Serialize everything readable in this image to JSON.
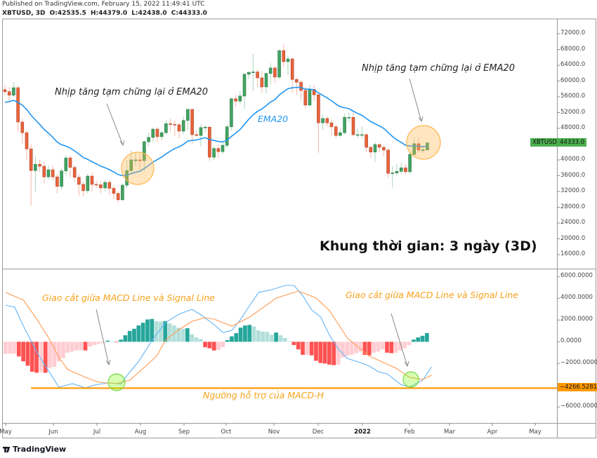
{
  "header": {
    "published": "Published on TradingView.com, February 15, 2022 11:49:41 UTC",
    "symbol": "XBTUSD, 3D",
    "ohlc": [
      "O:42535.5",
      "H:44379.0",
      "L:42438.0",
      "C:44333.0"
    ]
  },
  "footer": {
    "logo": "TradingView"
  },
  "colors": {
    "up": "#43a362",
    "down": "#e8643c",
    "ema": "#2196f3",
    "macd": "#64b5f6",
    "signal": "#ff9a52",
    "support": "#ff9800",
    "hist_up_strong": "#26a69a",
    "hist_up_weak": "#b2dfdb",
    "hist_down_strong": "#ff5252",
    "hist_down_weak": "#ffcdd2"
  },
  "annotations": {
    "ema_note_left": "Nhịp tăng tạm chững lại ở EMA20",
    "ema_note_right": "Nhịp tăng tạm chững lại ở EMA20",
    "ema_label": "EMA20",
    "timeframe": "Khung thời gian:  3 ngày (3D)",
    "cross_note_left": "Giao cắt giữa MACD Line và Signal Line",
    "cross_note_right": "Giao cắt giữa MACD Line và Signal Line",
    "support_note": "Ngưỡng hỗ trợ của MACD-H"
  },
  "chart_data": [
    {
      "type": "candlestick",
      "symbol": "XBTUSD",
      "last_price_label": "XBTUSD",
      "last_price": "44333.0",
      "ylim": [
        12000,
        74000
      ],
      "y_ticks": [
        "72000.0",
        "68000.0",
        "64000.0",
        "60000.0",
        "56000.0",
        "52000.0",
        "48000.0",
        "44000.0",
        "40000.0",
        "36000.0",
        "32000.0",
        "28000.0",
        "24000.0",
        "20000.0",
        "16000.0"
      ],
      "x_ticks": [
        "May",
        "Jun",
        "Jul",
        "Aug",
        "Sep",
        "Oct",
        "Nov",
        "Dec",
        "2022",
        "Feb",
        "Mar",
        "Apr",
        "May"
      ],
      "overlay": "EMA20",
      "candles_ohlc": [
        [
          57800,
          59000,
          56500,
          57300
        ],
        [
          57300,
          58500,
          54500,
          56400
        ],
        [
          56400,
          59700,
          56000,
          58300
        ],
        [
          58300,
          58800,
          47000,
          49600
        ],
        [
          49600,
          50500,
          44000,
          46900
        ],
        [
          46900,
          47500,
          40000,
          42800
        ],
        [
          42800,
          44000,
          28400,
          37300
        ],
        [
          37300,
          41000,
          32000,
          38900
        ],
        [
          38900,
          40000,
          37000,
          38400
        ],
        [
          38400,
          39500,
          34000,
          35700
        ],
        [
          35700,
          38500,
          35000,
          37500
        ],
        [
          37500,
          38700,
          34800,
          35700
        ],
        [
          35700,
          36500,
          31500,
          33300
        ],
        [
          33300,
          37800,
          32500,
          37200
        ],
        [
          37200,
          41300,
          36000,
          40500
        ],
        [
          40500,
          41000,
          35500,
          38100
        ],
        [
          38100,
          38600,
          34500,
          35600
        ],
        [
          35600,
          36500,
          31000,
          33800
        ],
        [
          33800,
          34500,
          30800,
          32200
        ],
        [
          32200,
          36500,
          31500,
          35900
        ],
        [
          35900,
          36800,
          32000,
          33800
        ],
        [
          33800,
          34700,
          32800,
          33700
        ],
        [
          33700,
          34500,
          31500,
          32900
        ],
        [
          32900,
          35000,
          32000,
          34300
        ],
        [
          34300,
          34800,
          31000,
          32800
        ],
        [
          32800,
          33500,
          30000,
          31500
        ],
        [
          31500,
          32000,
          29300,
          29900
        ],
        [
          29900,
          34000,
          29500,
          33600
        ],
        [
          33600,
          40000,
          33000,
          37300
        ],
        [
          37300,
          42500,
          36500,
          40000
        ],
        [
          40000,
          42000,
          38500,
          40000
        ],
        [
          40000,
          41500,
          37500,
          39800
        ],
        [
          39800,
          45000,
          37000,
          44600
        ],
        [
          44600,
          47000,
          43500,
          45700
        ],
        [
          45700,
          48200,
          44500,
          47800
        ],
        [
          47800,
          48300,
          44500,
          45900
        ],
        [
          45900,
          47500,
          45000,
          46900
        ],
        [
          46900,
          50000,
          46500,
          49200
        ],
        [
          49200,
          50500,
          47000,
          49000
        ],
        [
          49000,
          50000,
          46000,
          48900
        ],
        [
          48900,
          49500,
          45500,
          47300
        ],
        [
          47300,
          51000,
          46500,
          50000
        ],
        [
          50000,
          53000,
          47500,
          52800
        ],
        [
          52800,
          53000,
          44000,
          46400
        ],
        [
          46400,
          47500,
          45800,
          46200
        ],
        [
          46200,
          49000,
          43500,
          48200
        ],
        [
          48200,
          48800,
          47000,
          48300
        ],
        [
          48300,
          48500,
          39600,
          40700
        ],
        [
          40700,
          43500,
          40000,
          42900
        ],
        [
          42900,
          44000,
          40500,
          42100
        ],
        [
          42100,
          44500,
          41500,
          43700
        ],
        [
          43700,
          49000,
          43000,
          48400
        ],
        [
          48400,
          55800,
          47500,
          55500
        ],
        [
          55500,
          56500,
          53500,
          54900
        ],
        [
          54900,
          57500,
          54000,
          56200
        ],
        [
          56200,
          62000,
          53000,
          61700
        ],
        [
          61700,
          62500,
          60500,
          62200
        ],
        [
          62200,
          67000,
          57500,
          62300
        ],
        [
          62300,
          63000,
          58500,
          60800
        ],
        [
          60800,
          62500,
          57000,
          58500
        ],
        [
          58500,
          62200,
          56800,
          61900
        ],
        [
          61900,
          64500,
          59000,
          63300
        ],
        [
          63300,
          63800,
          59500,
          61000
        ],
        [
          61000,
          68000,
          60500,
          67700
        ],
        [
          67700,
          69300,
          63500,
          64900
        ],
        [
          64900,
          66500,
          61500,
          65600
        ],
        [
          65600,
          66000,
          57000,
          60400
        ],
        [
          60400,
          60800,
          56500,
          59700
        ],
        [
          59700,
          60300,
          55000,
          57600
        ],
        [
          57600,
          58500,
          53000,
          53900
        ],
        [
          53900,
          59000,
          53500,
          57900
        ],
        [
          57900,
          59000,
          55000,
          56500
        ],
        [
          56500,
          57000,
          41800,
          49400
        ],
        [
          49400,
          51500,
          47500,
          50500
        ],
        [
          50500,
          51000,
          48500,
          49400
        ],
        [
          49400,
          50200,
          46000,
          48400
        ],
        [
          48400,
          49000,
          45500,
          46200
        ],
        [
          46200,
          47800,
          45800,
          46900
        ],
        [
          46900,
          51800,
          46400,
          50800
        ],
        [
          50800,
          51900,
          49500,
          50800
        ],
        [
          50800,
          52000,
          46000,
          46400
        ],
        [
          46400,
          48000,
          45500,
          46400
        ],
        [
          46400,
          48500,
          45500,
          46400
        ],
        [
          46400,
          46800,
          42000,
          43200
        ],
        [
          43200,
          43500,
          40500,
          42000
        ],
        [
          42000,
          44500,
          39500,
          43900
        ],
        [
          43900,
          44200,
          42000,
          43200
        ],
        [
          43200,
          43600,
          41000,
          42500
        ],
        [
          42500,
          43000,
          35500,
          36600
        ],
        [
          36600,
          38500,
          33000,
          36700
        ],
        [
          36700,
          39000,
          36000,
          37100
        ],
        [
          37100,
          39300,
          36500,
          38000
        ],
        [
          38000,
          39000,
          36200,
          37000
        ],
        [
          37000,
          42000,
          36300,
          41400
        ],
        [
          41400,
          45800,
          41000,
          44100
        ],
        [
          44100,
          45500,
          41800,
          42500
        ],
        [
          42500,
          43500,
          41800,
          42535
        ],
        [
          42535,
          44379,
          42438,
          44333
        ]
      ]
    },
    {
      "type": "macd",
      "ylim": [
        -8000,
        6800
      ],
      "y_ticks": [
        "6000.0000",
        "4000.0000",
        "2000.0000",
        "0.0000",
        "−2000.0000",
        "−6000.0000"
      ],
      "support_level": -4266.5281,
      "support_label": "−4266.5281",
      "histogram": [
        -1100,
        -1100,
        -1100,
        -1350,
        -1800,
        -2200,
        -2750,
        -2850,
        -2800,
        -2850,
        -2400,
        -2300,
        -1800,
        -1500,
        -1000,
        -900,
        -800,
        -750,
        -800,
        -450,
        -300,
        -200,
        -100,
        100,
        50,
        -50,
        200,
        600,
        1000,
        1200,
        1500,
        1750,
        2050,
        2100,
        1900,
        1850,
        1900,
        1700,
        1500,
        1300,
        1200,
        1250,
        700,
        400,
        250,
        -500,
        -600,
        -800,
        -750,
        -500,
        150,
        500,
        800,
        1300,
        1500,
        1550,
        1400,
        1050,
        950,
        900,
        650,
        850,
        600,
        350,
        50,
        -300,
        -700,
        -1200,
        -1200,
        -1250,
        -1750,
        -1950,
        -2000,
        -2100,
        -2150,
        -2100,
        -1450,
        -1300,
        -1200,
        -1050,
        -900,
        -1200,
        -1250,
        -1000,
        -900,
        -700,
        -1000,
        -1050,
        -1000,
        -800,
        -600,
        -300,
        200,
        400,
        550,
        800
      ],
      "macd_line_by_bar": [
        [
          0,
          3370
        ],
        [
          2,
          3180
        ],
        [
          4,
          1440
        ],
        [
          7,
          -950
        ],
        [
          10,
          -2890
        ],
        [
          12,
          -4180
        ],
        [
          15,
          -3850
        ],
        [
          18,
          -4240
        ],
        [
          20,
          -3980
        ],
        [
          23,
          -3790
        ],
        [
          26,
          -3880
        ],
        [
          27,
          -3270
        ],
        [
          30,
          -1790
        ],
        [
          33,
          150
        ],
        [
          36,
          1760
        ],
        [
          39,
          2530
        ],
        [
          42,
          2990
        ],
        [
          44,
          2470
        ],
        [
          47,
          1570
        ],
        [
          49,
          860
        ],
        [
          51,
          1050
        ],
        [
          53,
          2080
        ],
        [
          54,
          2730
        ],
        [
          57,
          4540
        ],
        [
          60,
          4800
        ],
        [
          63,
          5180
        ],
        [
          65,
          5180
        ],
        [
          67,
          4210
        ],
        [
          69,
          2920
        ],
        [
          71,
          2280
        ],
        [
          73,
          600
        ],
        [
          75,
          -690
        ],
        [
          77,
          -1530
        ],
        [
          80,
          -1920
        ],
        [
          82,
          -2240
        ],
        [
          84,
          -2760
        ],
        [
          86,
          -2950
        ],
        [
          89,
          -3920
        ],
        [
          91,
          -4170
        ],
        [
          94,
          -3530
        ],
        [
          96,
          -2300
        ]
      ],
      "signal_line_by_bar": [
        [
          0,
          4540
        ],
        [
          4,
          3830
        ],
        [
          7,
          2080
        ],
        [
          10,
          150
        ],
        [
          12,
          -1460
        ],
        [
          14,
          -2560
        ],
        [
          18,
          -3270
        ],
        [
          21,
          -3720
        ],
        [
          25,
          -3850
        ],
        [
          28,
          -3530
        ],
        [
          31,
          -2430
        ],
        [
          34,
          -1330
        ],
        [
          36,
          150
        ],
        [
          39,
          1110
        ],
        [
          42,
          1890
        ],
        [
          45,
          2210
        ],
        [
          47,
          2080
        ],
        [
          51,
          1440
        ],
        [
          55,
          2280
        ],
        [
          61,
          4020
        ],
        [
          66,
          4670
        ],
        [
          70,
          4020
        ],
        [
          73,
          2860
        ],
        [
          77,
          340
        ],
        [
          82,
          -1330
        ],
        [
          88,
          -2430
        ],
        [
          91,
          -3270
        ],
        [
          94,
          -3470
        ],
        [
          96,
          -3080
        ]
      ]
    }
  ]
}
